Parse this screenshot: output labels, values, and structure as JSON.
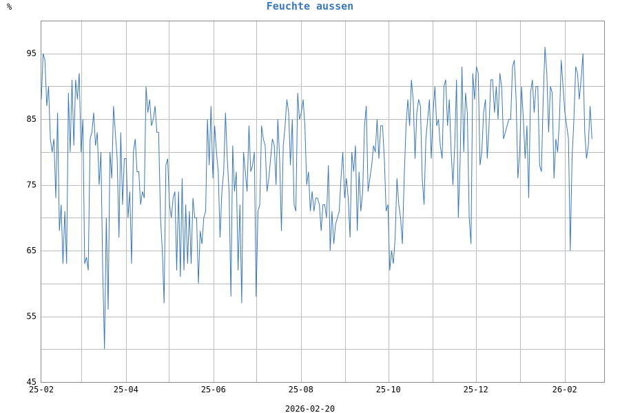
{
  "chart_data": {
    "type": "line",
    "title": "Feuchte aussen",
    "ylabel": "%",
    "xlabel": "2026-02-20",
    "ylim": [
      45,
      100
    ],
    "y_ticks": [
      45,
      55,
      65,
      75,
      85,
      95
    ],
    "x_ticks": [
      "25-02",
      "25-04",
      "25-06",
      "25-08",
      "25-10",
      "25-12",
      "26-02"
    ],
    "grid": true,
    "colors": {
      "series": "#3a78b8",
      "title": "#3a78b8",
      "grid": "#bdbdbd"
    },
    "series": [
      {
        "x_start": "2025-02-01",
        "x_end": "2026-02-20",
        "values": [
          88,
          95,
          94,
          87,
          90,
          82,
          80,
          82,
          73,
          86,
          68,
          72,
          63,
          71,
          63,
          89,
          80,
          91,
          81,
          91,
          88,
          92,
          80,
          85,
          63,
          64,
          62,
          82,
          83,
          86,
          81,
          83,
          75,
          80,
          62,
          50,
          70,
          56,
          80,
          76,
          87,
          83,
          79,
          67,
          83,
          72,
          79,
          79,
          70,
          74,
          63,
          80,
          82,
          77,
          77,
          72,
          74,
          73,
          90,
          86,
          88,
          84,
          85,
          87,
          83,
          83,
          70,
          65,
          57,
          78,
          79,
          72,
          70,
          73,
          74,
          62,
          74,
          61,
          76,
          62,
          72,
          63,
          71,
          63,
          73,
          70,
          70,
          60,
          68,
          66,
          70,
          71,
          85,
          78,
          87,
          76,
          84,
          80,
          77,
          67,
          74,
          77,
          86,
          79,
          74,
          58,
          81,
          74,
          77,
          62,
          72,
          57,
          80,
          77,
          74,
          84,
          77,
          78,
          80,
          58,
          71,
          72,
          84,
          82,
          81,
          74,
          76,
          79,
          82,
          81,
          75,
          85,
          79,
          68,
          81,
          84,
          88,
          86,
          78,
          85,
          72,
          71,
          89,
          85,
          86,
          88,
          84,
          75,
          77,
          71,
          74,
          71,
          73,
          73,
          72,
          68,
          72,
          72,
          70,
          78,
          65,
          71,
          66,
          69,
          70,
          71,
          76,
          80,
          73,
          76,
          73,
          67,
          80,
          77,
          81,
          68,
          77,
          71,
          74,
          84,
          87,
          74,
          76,
          78,
          81,
          80,
          85,
          79,
          84,
          84,
          79,
          71,
          72,
          62,
          65,
          63,
          67,
          76,
          72,
          70,
          66,
          76,
          84,
          88,
          84,
          91,
          88,
          79,
          86,
          88,
          87,
          76,
          72,
          82,
          85,
          88,
          79,
          86,
          90,
          84,
          85,
          81,
          79,
          90,
          91,
          84,
          88,
          80,
          75,
          81,
          91,
          70,
          79,
          93,
          80,
          89,
          86,
          70,
          66,
          92,
          88,
          93,
          92,
          78,
          80,
          86,
          88,
          79,
          84,
          91,
          91,
          86,
          90,
          85,
          92,
          90,
          82,
          83,
          84,
          85,
          85,
          93,
          94,
          88,
          76,
          80,
          90,
          85,
          79,
          84,
          73,
          89,
          91,
          86,
          90,
          90,
          78,
          77,
          88,
          96,
          92,
          83,
          90,
          89,
          76,
          82,
          80,
          85,
          94,
          90,
          86,
          84,
          82,
          65,
          79,
          85,
          93,
          92,
          88,
          91,
          95,
          83,
          79,
          81,
          87,
          82
        ]
      }
    ]
  }
}
